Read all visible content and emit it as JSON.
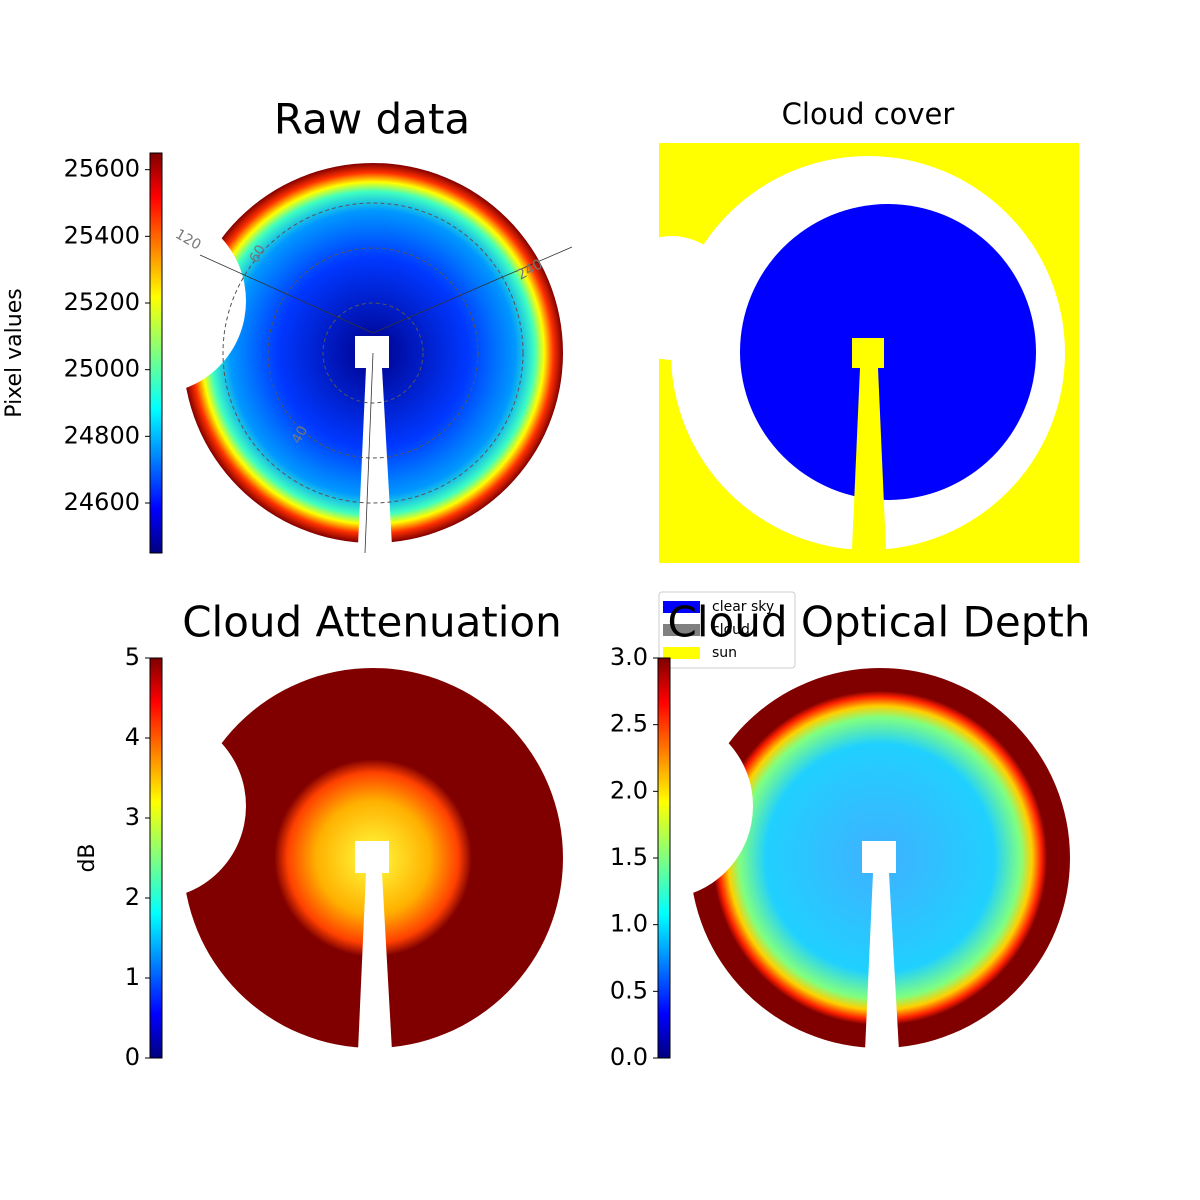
{
  "chart_data": [
    {
      "type": "image",
      "title": "Raw data",
      "colorbar_label": "Pixel values",
      "clim": [
        24450,
        25650
      ],
      "cticks": [
        24600,
        24800,
        25000,
        25200,
        25400,
        25600
      ],
      "annotations": [
        "120",
        "60",
        "240",
        "40"
      ]
    },
    {
      "type": "image",
      "title": "Cloud cover",
      "legend": [
        {
          "name": "clear sky",
          "color": "#0000ff"
        },
        {
          "name": "cloud",
          "color": "#808080"
        },
        {
          "name": "sun",
          "color": "#ffff00"
        }
      ]
    },
    {
      "type": "image",
      "title": "Cloud Attenuation",
      "colorbar_label": "dB",
      "clim": [
        0,
        5
      ],
      "cticks": [
        0,
        1,
        2,
        3,
        4,
        5
      ]
    },
    {
      "type": "image",
      "title": "Cloud Optical Depth",
      "clim": [
        0,
        3
      ],
      "cticks": [
        {
          "value": 0,
          "label": "0.0"
        },
        {
          "value": 0.5,
          "label": "0.5"
        },
        {
          "value": 1,
          "label": "1.0"
        },
        {
          "value": 1.5,
          "label": "1.5"
        },
        {
          "value": 2,
          "label": "2.0"
        },
        {
          "value": 2.5,
          "label": "2.5"
        },
        {
          "value": 3,
          "label": "3.0"
        }
      ]
    }
  ]
}
